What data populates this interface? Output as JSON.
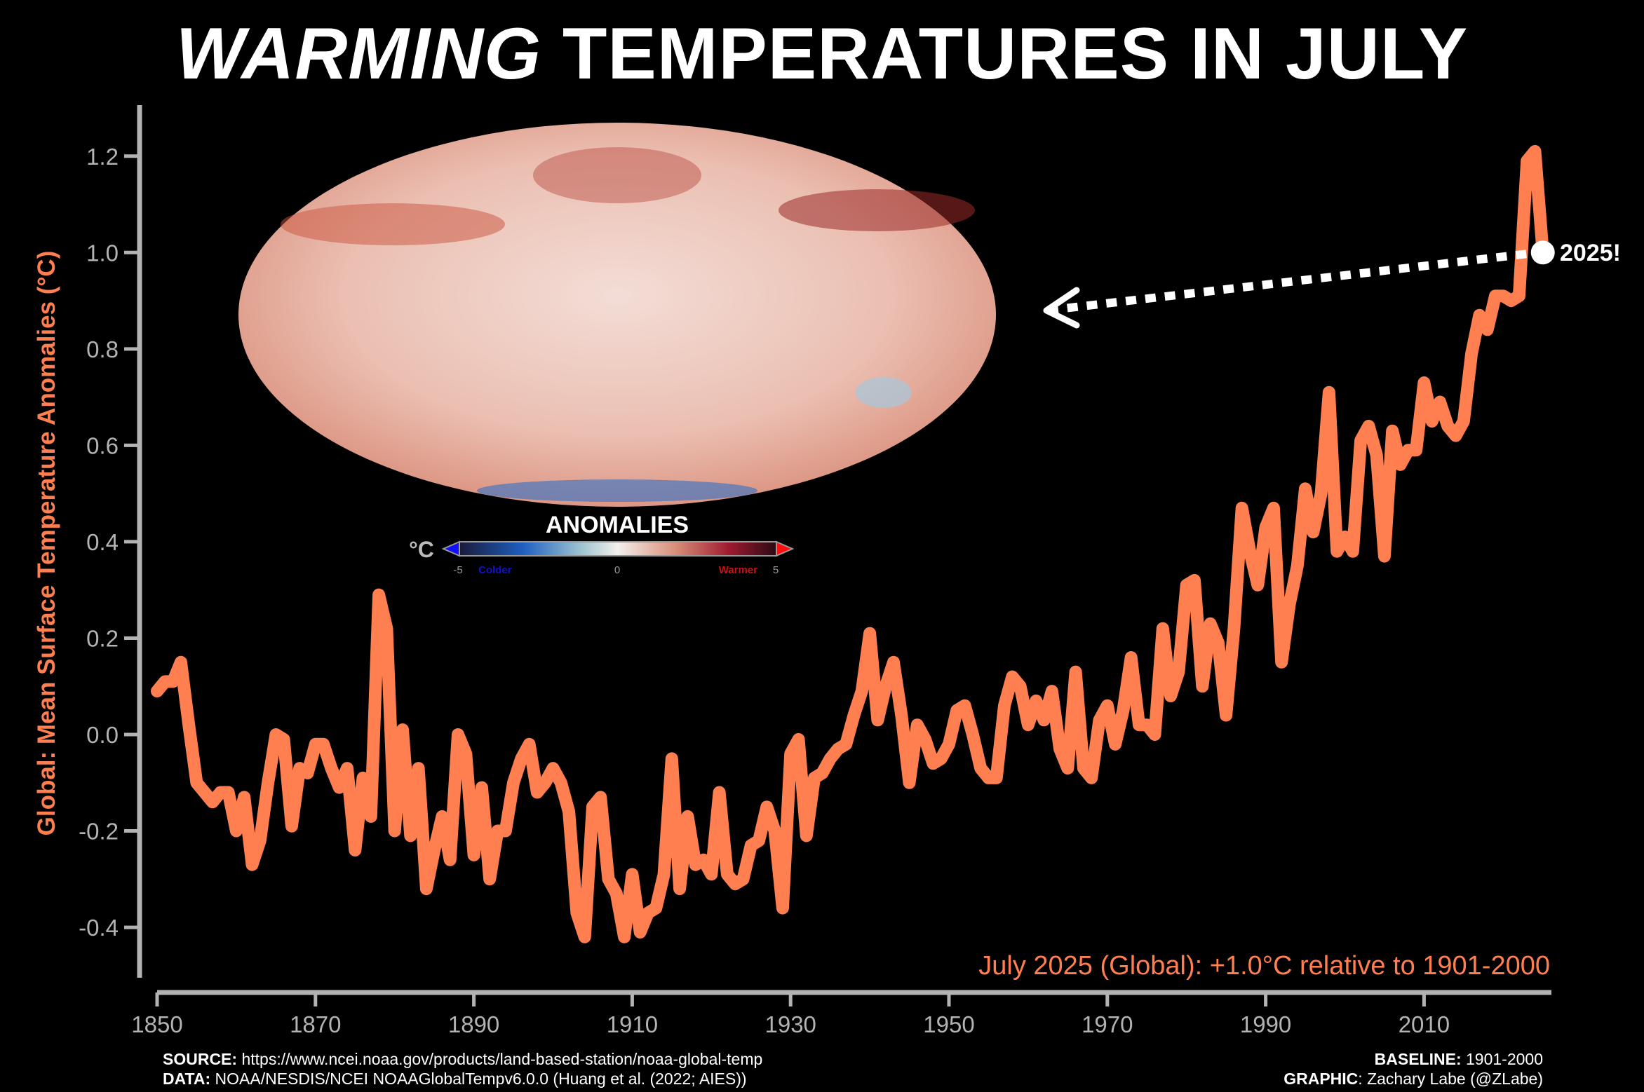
{
  "title": {
    "emphasis": "WARMING",
    "rest": "TEMPERATURES IN JULY"
  },
  "colors": {
    "line": "#ff7f50",
    "axis": "#b3b3b3",
    "background": "#000000",
    "text": "#ffffff"
  },
  "inset_map": {
    "projection": "mollweide",
    "colorbar_title": "ANOMALIES",
    "unit": "°C",
    "tick_min": "-5",
    "tick_mid": "0",
    "tick_max": "5",
    "cold_label": "Colder",
    "warm_label": "Warmer"
  },
  "annotation": {
    "label": "2025!",
    "caption": "July 2025 (Global): +1.0°C relative to 1901-2000"
  },
  "footer": {
    "source_label": "SOURCE:",
    "source_text": "https://www.ncei.noaa.gov/products/land-based-station/noaa-global-temp",
    "data_label": "DATA:",
    "data_text": "NOAA/NESDIS/NCEI NOAAGlobalTempv6.0.0 (Huang et al. (2022; AIES))",
    "baseline_label": "BASELINE:",
    "baseline_text": "1901-2000",
    "graphic_label": "GRAPHIC",
    "graphic_text": ": Zachary Labe (@ZLabe)"
  },
  "chart_data": {
    "type": "line",
    "title": "WARMING TEMPERATURES IN JULY",
    "xlabel": "",
    "ylabel": "Global: Mean Surface Temperature Anomalies (°C)",
    "xlim": [
      1850,
      2025
    ],
    "ylim": [
      -0.5,
      1.3
    ],
    "grid": false,
    "x_ticks": [
      "1850",
      "1870",
      "1890",
      "1910",
      "1930",
      "1950",
      "1970",
      "1990",
      "2010"
    ],
    "y_ticks": [
      "-0.4",
      "-0.2",
      "0.0",
      "0.2",
      "0.4",
      "0.6",
      "0.8",
      "1.0",
      "1.2"
    ],
    "x_start": 1850,
    "series": [
      {
        "values": [
          0.09,
          0.11,
          0.11,
          0.15,
          0.02,
          -0.1,
          -0.12,
          -0.14,
          -0.12,
          -0.12,
          -0.2,
          -0.13,
          -0.27,
          -0.22,
          -0.1,
          0.0,
          -0.01,
          -0.19,
          -0.07,
          -0.08,
          -0.02,
          -0.02,
          -0.07,
          -0.11,
          -0.07,
          -0.24,
          -0.09,
          -0.17,
          0.29,
          0.22,
          -0.2,
          0.01,
          -0.21,
          -0.07,
          -0.32,
          -0.24,
          -0.17,
          -0.26,
          0.0,
          -0.04,
          -0.25,
          -0.11,
          -0.3,
          -0.2,
          -0.2,
          -0.1,
          -0.05,
          -0.02,
          -0.12,
          -0.1,
          -0.07,
          -0.1,
          -0.16,
          -0.37,
          -0.42,
          -0.15,
          -0.13,
          -0.3,
          -0.33,
          -0.42,
          -0.29,
          -0.41,
          -0.37,
          -0.36,
          -0.29,
          -0.05,
          -0.32,
          -0.17,
          -0.27,
          -0.26,
          -0.29,
          -0.12,
          -0.29,
          -0.31,
          -0.3,
          -0.23,
          -0.22,
          -0.15,
          -0.2,
          -0.36,
          -0.04,
          -0.01,
          -0.21,
          -0.09,
          -0.08,
          -0.05,
          -0.03,
          -0.02,
          0.04,
          0.09,
          0.21,
          0.03,
          0.1,
          0.15,
          0.04,
          -0.1,
          0.02,
          -0.01,
          -0.06,
          -0.05,
          -0.02,
          0.05,
          0.06,
          0.0,
          -0.07,
          -0.09,
          -0.09,
          0.06,
          0.12,
          0.1,
          0.02,
          0.07,
          0.03,
          0.09,
          -0.03,
          -0.07,
          0.13,
          -0.07,
          -0.09,
          0.03,
          0.06,
          -0.02,
          0.05,
          0.16,
          0.02,
          0.02,
          0.0,
          0.22,
          0.08,
          0.13,
          0.31,
          0.32,
          0.1,
          0.23,
          0.19,
          0.04,
          0.22,
          0.47,
          0.38,
          0.31,
          0.43,
          0.47,
          0.15,
          0.27,
          0.35,
          0.51,
          0.42,
          0.5,
          0.71,
          0.38,
          0.41,
          0.38,
          0.61,
          0.64,
          0.58,
          0.37,
          0.63,
          0.56,
          0.59,
          0.59,
          0.73,
          0.65,
          0.69,
          0.64,
          0.62,
          0.65,
          0.79,
          0.87,
          0.84,
          0.91,
          0.91,
          0.9,
          0.91,
          1.19,
          1.21,
          1.0
        ]
      }
    ],
    "highlight": {
      "year": 2025,
      "value": 1.0
    }
  }
}
